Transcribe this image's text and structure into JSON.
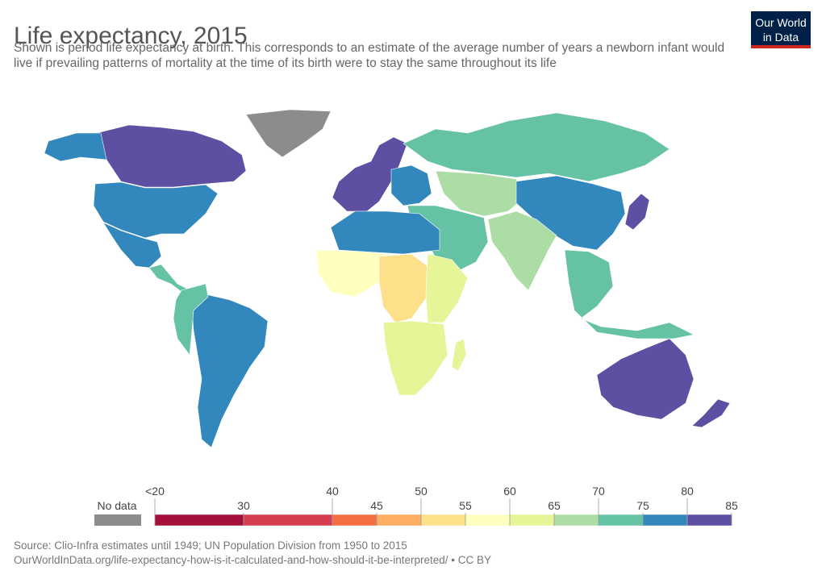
{
  "title": "Life expectancy, 2015",
  "subtitle": "Shown is period life expectancy at birth. This corresponds to an estimate of the average number of years a newborn infant would live if prevailing patterns of mortality at the time of its birth were to stay the same throughout its life",
  "logo": {
    "line1": "Our World",
    "line2": "in Data"
  },
  "legend": {
    "no_data_label": "No data",
    "no_data_color": "#8c8c8c",
    "bins": [
      {
        "from": "<20",
        "to": "30",
        "color": "#a50f3c"
      },
      {
        "from": "30",
        "to": "40",
        "color": "#d53e4f"
      },
      {
        "from": "40",
        "to": "45",
        "color": "#f46d43"
      },
      {
        "from": "45",
        "to": "50",
        "color": "#fdae61"
      },
      {
        "from": "50",
        "to": "55",
        "color": "#fee08b"
      },
      {
        "from": "55",
        "to": "60",
        "color": "#ffffbf"
      },
      {
        "from": "60",
        "to": "65",
        "color": "#e6f598"
      },
      {
        "from": "65",
        "to": "70",
        "color": "#abdda4"
      },
      {
        "from": "70",
        "to": "75",
        "color": "#66c2a5"
      },
      {
        "from": "75",
        "to": "80",
        "color": "#3288bd"
      },
      {
        "from": "80",
        "to": "85",
        "color": "#5e4fa2"
      }
    ],
    "tick_labels": [
      "<20",
      "30",
      "40",
      "45",
      "50",
      "55",
      "60",
      "65",
      "70",
      "75",
      "80",
      "85"
    ]
  },
  "regions": {
    "north_america": {
      "band": "80-85",
      "color": "#5e4fa2"
    },
    "usa": {
      "band": "75-80",
      "color": "#3288bd"
    },
    "alaska": {
      "band": "75-80",
      "color": "#3288bd"
    },
    "greenland": {
      "band": "no data",
      "color": "#8c8c8c"
    },
    "mexico": {
      "band": "75-80",
      "color": "#3288bd"
    },
    "central_america": {
      "band": "70-75",
      "color": "#66c2a5"
    },
    "south_america_east": {
      "band": "75-80",
      "color": "#3288bd"
    },
    "south_america_west": {
      "band": "70-75",
      "color": "#66c2a5"
    },
    "western_europe": {
      "band": "80-85",
      "color": "#5e4fa2"
    },
    "eastern_europe": {
      "band": "75-80",
      "color": "#3288bd"
    },
    "russia": {
      "band": "70-75",
      "color": "#66c2a5"
    },
    "central_asia": {
      "band": "65-70",
      "color": "#abdda4"
    },
    "china": {
      "band": "75-80",
      "color": "#3288bd"
    },
    "japan": {
      "band": "80-85",
      "color": "#5e4fa2"
    },
    "india": {
      "band": "65-70",
      "color": "#abdda4"
    },
    "middle_east": {
      "band": "70-75",
      "color": "#66c2a5"
    },
    "north_africa": {
      "band": "75-80",
      "color": "#3288bd"
    },
    "west_africa": {
      "band": "55-60",
      "color": "#ffffbf"
    },
    "central_africa": {
      "band": "50-55",
      "color": "#fee08b"
    },
    "east_africa": {
      "band": "60-65",
      "color": "#e6f598"
    },
    "southern_africa": {
      "band": "60-65",
      "color": "#e6f598"
    },
    "southeast_asia": {
      "band": "70-75",
      "color": "#66c2a5"
    },
    "australia": {
      "band": "80-85",
      "color": "#5e4fa2"
    },
    "new_zealand": {
      "band": "80-85",
      "color": "#5e4fa2"
    }
  },
  "source": {
    "line1": "Source: Clio-Infra estimates until 1949; UN Population Division from 1950 to 2015",
    "line2": "OurWorldInData.org/life-expectancy-how-is-it-calculated-and-how-should-it-be-interpreted/ • CC BY"
  }
}
